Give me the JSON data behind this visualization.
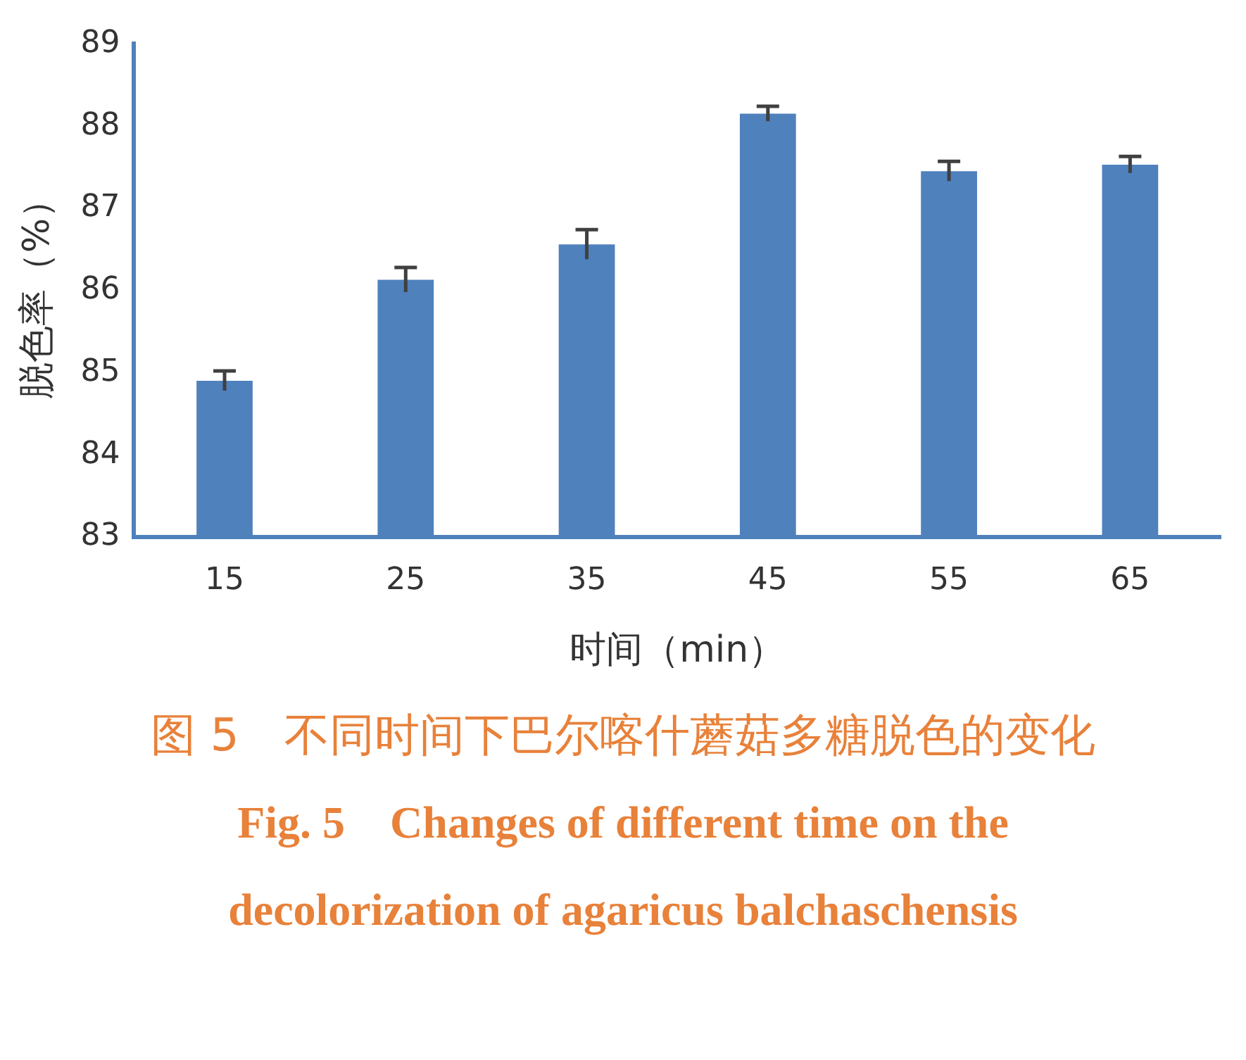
{
  "chart_data": {
    "type": "bar",
    "xlabel": "时间（min）",
    "ylabel": "脱色率（%）",
    "categories": [
      "15",
      "25",
      "35",
      "45",
      "55",
      "65"
    ],
    "values": [
      84.9,
      86.13,
      86.56,
      88.15,
      87.45,
      87.53
    ],
    "errors": [
      0.12,
      0.15,
      0.18,
      0.09,
      0.12,
      0.1
    ],
    "color": "#4f81bd",
    "ylim": [
      83,
      89
    ],
    "yticks": [
      83,
      84,
      85,
      86,
      87,
      88,
      89
    ],
    "grid": false,
    "legend": false,
    "annotations": [
      "图 5　不同时间下巴尔喀什蘑菇多糖脱色的变化",
      "Fig. 5　Changes of different time on the decolorization of agaricus balchaschensis"
    ]
  }
}
